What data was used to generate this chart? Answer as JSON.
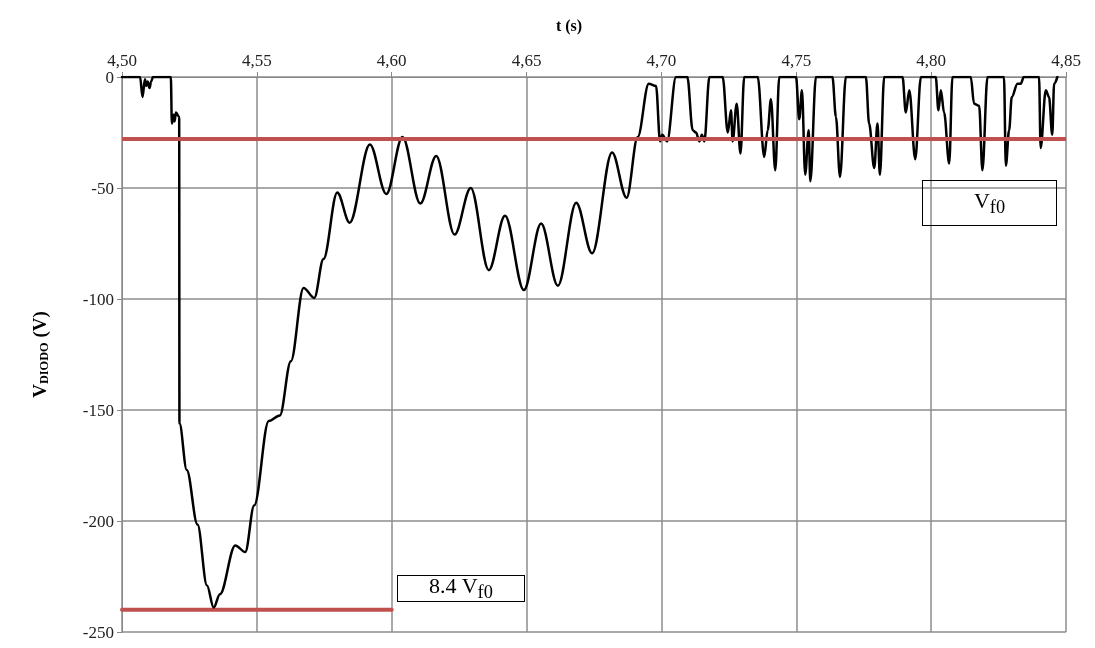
{
  "chart_data": {
    "type": "line",
    "xlabel": "t (s)",
    "ylabel": "V$_{DIODO}$ (V)",
    "xlim": [
      4.5,
      4.85
    ],
    "xticks": [
      {
        "value": 4.5,
        "label": "4,50"
      },
      {
        "value": 4.55,
        "label": "4,55"
      },
      {
        "value": 4.6,
        "label": "4,60"
      },
      {
        "value": 4.65,
        "label": "4,65"
      },
      {
        "value": 4.7,
        "label": "4,70"
      },
      {
        "value": 4.75,
        "label": "4,75"
      },
      {
        "value": 4.8,
        "label": "4,80"
      },
      {
        "value": 4.85,
        "label": "4,85"
      }
    ],
    "ylim": [
      -250,
      0
    ],
    "yticks": [
      -250,
      -200,
      -150,
      -100,
      -50,
      0
    ],
    "grid": true,
    "marker": "none",
    "line_style": "solid",
    "series": [
      {
        "color": "#000000",
        "x": [
          4.5,
          4.5067,
          4.5076,
          4.5085,
          4.509,
          4.5095,
          4.5102,
          4.5108,
          4.5115,
          4.5181,
          4.5185,
          4.5192,
          4.5195,
          4.52,
          4.5212,
          4.5213,
          4.524,
          4.528,
          4.5315,
          4.534,
          4.5363,
          4.542,
          4.5457,
          4.549,
          4.5544,
          4.5585,
          4.5626,
          4.5673,
          4.5713,
          4.5747,
          4.5798,
          4.5844,
          4.5919,
          4.598,
          4.604,
          4.6106,
          4.6165,
          4.6233,
          4.6293,
          4.636,
          4.642,
          4.649,
          4.6554,
          4.6616,
          4.6684,
          4.6743,
          4.6817,
          4.6871,
          4.6912,
          4.6953,
          4.698,
          4.6995,
          4.7003,
          4.7021,
          4.7054,
          4.7096,
          4.7116,
          4.7128,
          4.7141,
          4.715,
          4.7159,
          4.7178,
          4.7227,
          4.7246,
          4.7258,
          4.7264,
          4.7279,
          4.7293,
          4.7307,
          4.7357,
          4.7381,
          4.7394,
          4.7406,
          4.7422,
          4.7437,
          4.7499,
          4.7511,
          4.7521,
          4.7533,
          4.7546,
          4.7552,
          4.7573,
          4.7634,
          4.7647,
          4.7662,
          4.7684,
          4.7758,
          4.777,
          4.7789,
          4.7801,
          4.781,
          4.7826,
          4.7894,
          4.7906,
          4.7919,
          4.7941,
          4.7962,
          4.8017,
          4.8027,
          4.8036,
          4.8048,
          4.8067,
          4.8079,
          4.8147,
          4.8159,
          4.8178,
          4.819,
          4.8209,
          4.827,
          4.8277,
          4.8289,
          4.8299,
          4.832,
          4.8332,
          4.8344,
          4.84,
          4.8406,
          4.8425,
          4.8437,
          4.8449,
          4.8456,
          4.8468
        ],
        "values": [
          0,
          0,
          -9,
          -1,
          -4,
          -2,
          -5,
          -2,
          0,
          0,
          -21,
          -17,
          -20,
          -16,
          -18,
          -156,
          -177,
          -201.6,
          -229,
          -239,
          -233,
          -211,
          -214,
          -193,
          -155,
          -152.5,
          -128,
          -95,
          -99.5,
          -82,
          -52,
          -65.6,
          -30.4,
          -52.7,
          -27,
          -57,
          -35.6,
          -71,
          -50,
          -87,
          -62.5,
          -96,
          -66,
          -94,
          -56.6,
          -79.4,
          -34,
          -54.4,
          -27,
          -3,
          -4,
          -29,
          -26,
          -29,
          0,
          0,
          -24,
          -25,
          -29,
          -26,
          -29,
          0,
          0,
          -25,
          -15,
          -29,
          -12,
          -34.5,
          0,
          0,
          -36,
          -24,
          -10,
          -42,
          0,
          0,
          -19,
          -6,
          -44,
          -24,
          -47,
          0,
          0,
          -18,
          -45,
          0,
          0,
          -21,
          -41,
          -21,
          -44,
          0,
          0,
          -16,
          -6,
          -37,
          0,
          0,
          -15,
          -6,
          -16,
          -39,
          0,
          0,
          -12,
          -13,
          -42,
          0,
          0,
          -40,
          -24,
          -9,
          -3,
          -3,
          0,
          0,
          -32,
          -6,
          -9,
          -26,
          -3,
          0
        ]
      },
      {
        "color": "#c0504d",
        "x": [
          4.5,
          4.6
        ],
        "values": [
          -240,
          -240
        ]
      }
    ],
    "ref_lines": [
      {
        "axis": "y",
        "value": -28,
        "color": "#c0504d"
      }
    ],
    "annotations": [
      "V$_{f0}$",
      "8.4 V$_{f0}$"
    ]
  }
}
